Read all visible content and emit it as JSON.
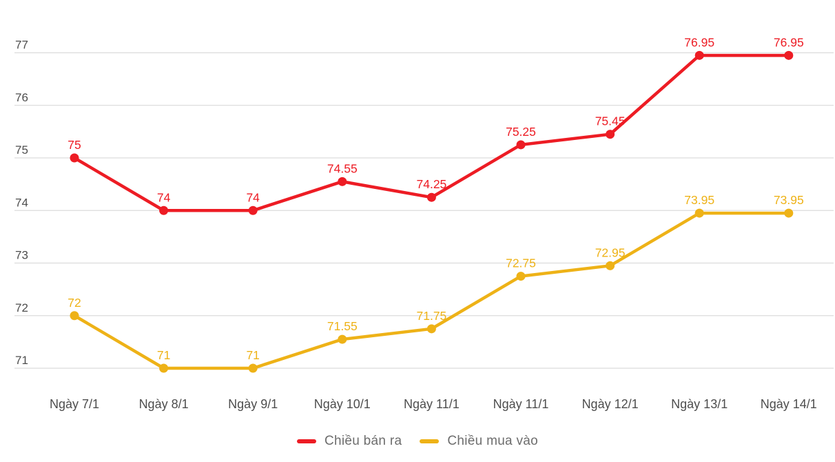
{
  "chart_data": {
    "type": "line",
    "categories": [
      "Ngày 7/1",
      "Ngày 8/1",
      "Ngày 9/1",
      "Ngày 10/1",
      "Ngày 11/1",
      "Ngày 11/1",
      "Ngày 12/1",
      "Ngày 13/1",
      "Ngày 14/1"
    ],
    "series": [
      {
        "name": "Chiều bán ra",
        "color": "#ed1c24",
        "values": [
          75,
          74,
          74,
          74.55,
          74.25,
          75.25,
          75.45,
          76.95,
          76.95
        ],
        "point_labels": [
          "75",
          "74",
          "74",
          "74.55",
          "74.25",
          "75.25",
          "75.45",
          "76.95",
          "76.95"
        ]
      },
      {
        "name": "Chiều mua vào",
        "color": "#eeb217",
        "values": [
          72,
          71,
          71,
          71.55,
          71.75,
          72.75,
          72.95,
          73.95,
          73.95
        ],
        "point_labels": [
          "72",
          "71",
          "71",
          "71.55",
          "71.75",
          "72.75",
          "72.95",
          "73.95",
          "73.95"
        ]
      }
    ],
    "y_ticks": [
      77,
      76,
      75,
      74,
      73,
      72,
      71
    ],
    "ylim": [
      71,
      77
    ],
    "grid": "horizontal-only",
    "legend_position": "bottom-center",
    "show_point_labels": true,
    "title": "",
    "xlabel": "",
    "ylabel": ""
  },
  "colors": {
    "background": "#ffffff",
    "gridline": "#dcdcdc",
    "axis_text": "#4d4d4d",
    "legend_text": "#6d6d6d"
  }
}
